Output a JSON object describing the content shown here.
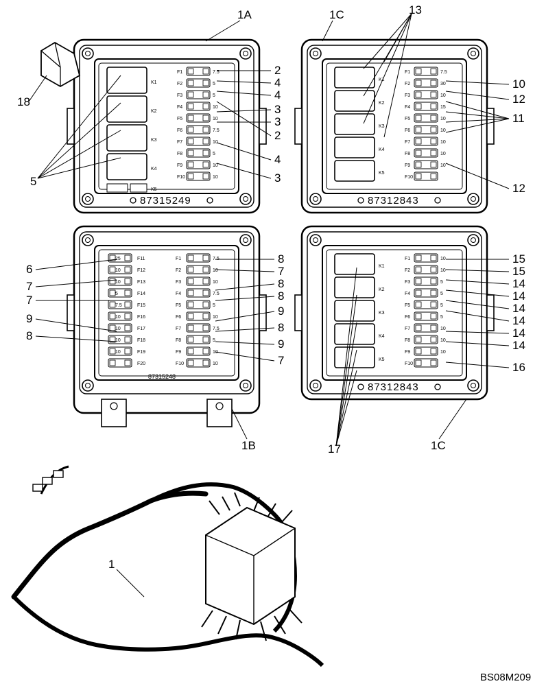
{
  "drawing_number": "BS08M209",
  "callouts": {
    "c1A": "1A",
    "c1B": "1B",
    "c1C_top": "1C",
    "c1C_bot": "1C",
    "c1": "1",
    "c2a": "2",
    "c2b": "2",
    "c3a": "3",
    "c3b": "3",
    "c3c": "3",
    "c4a": "4",
    "c4b": "4",
    "c4c": "4",
    "c5": "5",
    "c6": "6",
    "c7a": "7",
    "c7b": "7",
    "c7c": "7",
    "c7d": "7",
    "c8a": "8",
    "c8b": "8",
    "c8c": "8",
    "c8d": "8",
    "c8e": "8",
    "c9a": "9",
    "c9b": "9",
    "c9c": "9",
    "c10": "10",
    "c11": "11",
    "c12a": "12",
    "c12b": "12",
    "c13": "13",
    "c14a": "14",
    "c14b": "14",
    "c14c": "14",
    "c14d": "14",
    "c14e": "14",
    "c14f": "14",
    "c15a": "15",
    "c15b": "15",
    "c16": "16",
    "c17": "17",
    "c18": "18"
  },
  "serials": {
    "box1A": "87315249",
    "box1B": "87315248",
    "box1C_top": "87312843",
    "box1C_bot": "87312843"
  },
  "box1A": {
    "fuses": [
      {
        "pos": "F1",
        "val": "7.5"
      },
      {
        "pos": "F2",
        "val": "5"
      },
      {
        "pos": "F3",
        "val": "5"
      },
      {
        "pos": "F4",
        "val": "10"
      },
      {
        "pos": "F5",
        "val": "10"
      },
      {
        "pos": "F6",
        "val": "7.5"
      },
      {
        "pos": "F7",
        "val": "10"
      },
      {
        "pos": "F8",
        "val": "5"
      },
      {
        "pos": "F9",
        "val": "10"
      },
      {
        "pos": "F10",
        "val": "10"
      }
    ],
    "relay_labels": [
      "K1",
      "K2",
      "K3",
      "K4",
      "K5"
    ]
  },
  "box1C_top": {
    "fuses": [
      {
        "pos": "F1",
        "val": "7.5"
      },
      {
        "pos": "F2",
        "val": "30"
      },
      {
        "pos": "F3",
        "val": "10"
      },
      {
        "pos": "F4",
        "val": "15"
      },
      {
        "pos": "F5",
        "val": "10"
      },
      {
        "pos": "F6",
        "val": "10"
      },
      {
        "pos": "F7",
        "val": "10"
      },
      {
        "pos": "F8",
        "val": "10"
      },
      {
        "pos": "F9",
        "val": "10"
      },
      {
        "pos": "F10",
        "val": ""
      }
    ],
    "relay_labels": [
      "K1",
      "K2",
      "K3",
      "K4",
      "K5"
    ]
  },
  "box1B": {
    "left_fuses": [
      {
        "pos": "F11",
        "val": "25"
      },
      {
        "pos": "F12",
        "val": "10"
      },
      {
        "pos": "F13",
        "val": "10"
      },
      {
        "pos": "F14",
        "val": "5"
      },
      {
        "pos": "F15",
        "val": "7.5"
      },
      {
        "pos": "F16",
        "val": "10"
      },
      {
        "pos": "F17",
        "val": "10"
      },
      {
        "pos": "F18",
        "val": "10"
      },
      {
        "pos": "F19",
        "val": "10"
      },
      {
        "pos": "F20",
        "val": ""
      }
    ],
    "right_fuses": [
      {
        "pos": "F1",
        "val": "7.5"
      },
      {
        "pos": "F2",
        "val": "10"
      },
      {
        "pos": "F3",
        "val": "10"
      },
      {
        "pos": "F4",
        "val": "7.5"
      },
      {
        "pos": "F5",
        "val": "5"
      },
      {
        "pos": "F6",
        "val": "10"
      },
      {
        "pos": "F7",
        "val": "7.5"
      },
      {
        "pos": "F8",
        "val": "5"
      },
      {
        "pos": "F9",
        "val": "10"
      },
      {
        "pos": "F10",
        "val": "10"
      }
    ]
  },
  "box1C_bot": {
    "fuses": [
      {
        "pos": "F1",
        "val": "10"
      },
      {
        "pos": "F2",
        "val": "10"
      },
      {
        "pos": "F3",
        "val": "5"
      },
      {
        "pos": "F4",
        "val": "5"
      },
      {
        "pos": "F5",
        "val": "5"
      },
      {
        "pos": "F6",
        "val": "5"
      },
      {
        "pos": "F7",
        "val": "10"
      },
      {
        "pos": "F8",
        "val": "10"
      },
      {
        "pos": "F9",
        "val": "10"
      },
      {
        "pos": "F10",
        "val": ""
      }
    ],
    "relay_labels": [
      "K1",
      "K2",
      "K3",
      "K4",
      "K5"
    ]
  },
  "style": {
    "stroke": "#000",
    "stroke_heavy": 2.5,
    "stroke_med": 1.6,
    "stroke_light": 1,
    "bg": "#ffffff"
  }
}
